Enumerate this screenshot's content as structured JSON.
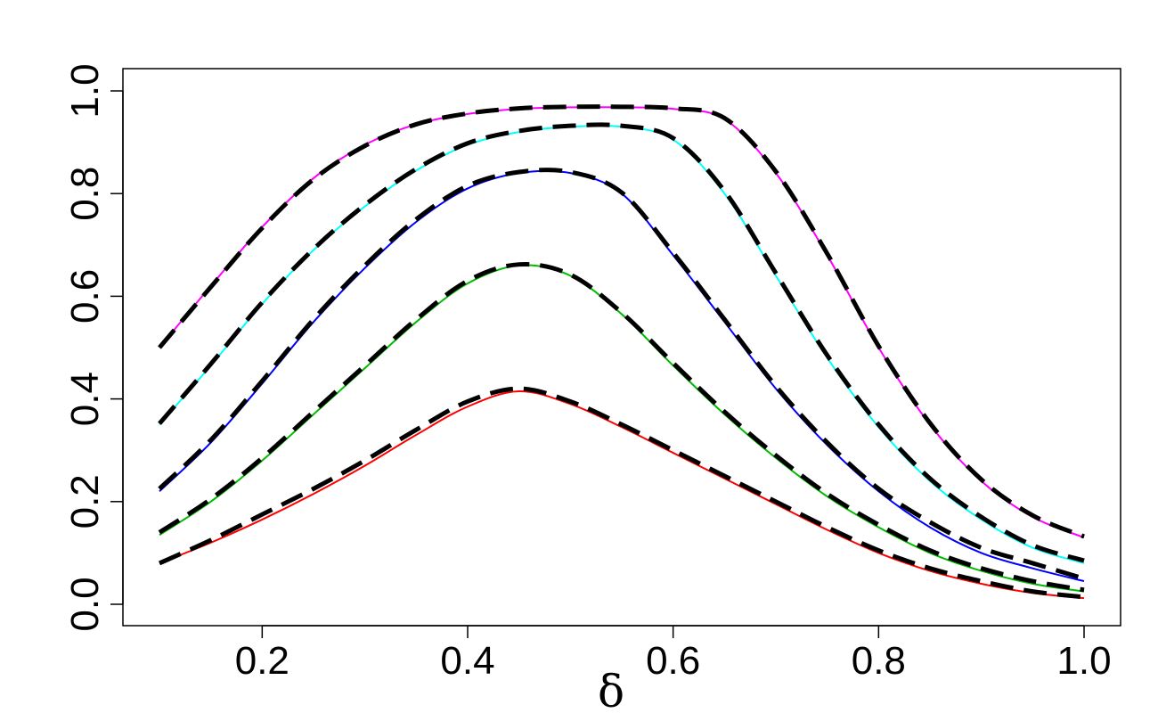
{
  "chart_data": {
    "type": "line",
    "title": "",
    "xlabel": "δ",
    "ylabel": "",
    "xlim": [
      0.1,
      1.0
    ],
    "ylim": [
      0.0,
      1.0
    ],
    "grid": false,
    "x_ticks": [
      "0.2",
      "0.4",
      "0.6",
      "0.8",
      "1.0"
    ],
    "y_ticks": [
      "0.0",
      "0.2",
      "0.4",
      "0.6",
      "0.8",
      "1.0"
    ],
    "series": [
      {
        "color": "#ff0000",
        "style": "solid",
        "x": [
          0.1,
          0.15,
          0.2,
          0.25,
          0.3,
          0.35,
          0.4,
          0.45,
          0.5,
          0.55,
          0.6,
          0.65,
          0.7,
          0.75,
          0.8,
          0.85,
          0.9,
          0.95,
          1.0
        ],
        "y": [
          0.08,
          0.12,
          0.165,
          0.215,
          0.27,
          0.33,
          0.385,
          0.415,
          0.39,
          0.345,
          0.295,
          0.245,
          0.195,
          0.145,
          0.1,
          0.065,
          0.04,
          0.022,
          0.012
        ]
      },
      {
        "color": "#000000",
        "style": "dashed",
        "x": [
          0.1,
          0.15,
          0.2,
          0.25,
          0.3,
          0.35,
          0.4,
          0.45,
          0.5,
          0.55,
          0.6,
          0.65,
          0.7,
          0.75,
          0.8,
          0.85,
          0.9,
          0.95,
          1.0
        ],
        "y": [
          0.08,
          0.125,
          0.175,
          0.225,
          0.28,
          0.34,
          0.395,
          0.42,
          0.395,
          0.35,
          0.3,
          0.25,
          0.2,
          0.15,
          0.105,
          0.07,
          0.045,
          0.025,
          0.014
        ]
      },
      {
        "color": "#00bb00",
        "style": "solid",
        "x": [
          0.1,
          0.15,
          0.2,
          0.25,
          0.3,
          0.35,
          0.4,
          0.45,
          0.5,
          0.55,
          0.6,
          0.65,
          0.7,
          0.75,
          0.8,
          0.85,
          0.9,
          0.95,
          1.0
        ],
        "y": [
          0.135,
          0.2,
          0.28,
          0.37,
          0.46,
          0.55,
          0.625,
          0.66,
          0.64,
          0.565,
          0.465,
          0.37,
          0.285,
          0.21,
          0.15,
          0.1,
          0.065,
          0.04,
          0.025
        ]
      },
      {
        "color": "#000000",
        "style": "dashed",
        "x": [
          0.1,
          0.15,
          0.2,
          0.25,
          0.3,
          0.35,
          0.4,
          0.45,
          0.5,
          0.55,
          0.6,
          0.65,
          0.7,
          0.75,
          0.8,
          0.85,
          0.9,
          0.95,
          1.0
        ],
        "y": [
          0.14,
          0.205,
          0.285,
          0.375,
          0.465,
          0.555,
          0.63,
          0.662,
          0.642,
          0.568,
          0.47,
          0.375,
          0.29,
          0.215,
          0.155,
          0.105,
          0.07,
          0.045,
          0.028
        ]
      },
      {
        "color": "#0000ff",
        "style": "solid",
        "x": [
          0.1,
          0.15,
          0.2,
          0.25,
          0.3,
          0.35,
          0.4,
          0.45,
          0.5,
          0.55,
          0.6,
          0.65,
          0.7,
          0.75,
          0.8,
          0.85,
          0.9,
          0.95,
          1.0
        ],
        "y": [
          0.22,
          0.315,
          0.43,
          0.55,
          0.655,
          0.745,
          0.81,
          0.84,
          0.84,
          0.8,
          0.68,
          0.55,
          0.42,
          0.31,
          0.22,
          0.15,
          0.1,
          0.07,
          0.045
        ]
      },
      {
        "color": "#000000",
        "style": "dashed",
        "x": [
          0.1,
          0.15,
          0.2,
          0.25,
          0.3,
          0.35,
          0.4,
          0.45,
          0.5,
          0.55,
          0.6,
          0.65,
          0.7,
          0.75,
          0.8,
          0.85,
          0.9,
          0.95,
          1.0
        ],
        "y": [
          0.225,
          0.32,
          0.435,
          0.555,
          0.66,
          0.75,
          0.815,
          0.842,
          0.842,
          0.802,
          0.685,
          0.555,
          0.425,
          0.315,
          0.225,
          0.16,
          0.11,
          0.08,
          0.05
        ]
      },
      {
        "color": "#00ffff",
        "style": "solid",
        "x": [
          0.1,
          0.15,
          0.2,
          0.25,
          0.3,
          0.35,
          0.4,
          0.45,
          0.5,
          0.55,
          0.6,
          0.65,
          0.7,
          0.75,
          0.8,
          0.85,
          0.9,
          0.95,
          1.0
        ],
        "y": [
          0.35,
          0.465,
          0.585,
          0.69,
          0.775,
          0.845,
          0.895,
          0.92,
          0.93,
          0.93,
          0.905,
          0.8,
          0.64,
          0.48,
          0.345,
          0.24,
          0.165,
          0.11,
          0.08
        ]
      },
      {
        "color": "#000000",
        "style": "dashed",
        "x": [
          0.1,
          0.15,
          0.2,
          0.25,
          0.3,
          0.35,
          0.4,
          0.45,
          0.5,
          0.55,
          0.6,
          0.65,
          0.7,
          0.75,
          0.8,
          0.85,
          0.9,
          0.95,
          1.0
        ],
        "y": [
          0.352,
          0.468,
          0.588,
          0.692,
          0.778,
          0.848,
          0.898,
          0.922,
          0.932,
          0.932,
          0.908,
          0.805,
          0.645,
          0.485,
          0.35,
          0.245,
          0.17,
          0.115,
          0.085
        ]
      },
      {
        "color": "#ff00ff",
        "style": "solid",
        "x": [
          0.1,
          0.15,
          0.2,
          0.25,
          0.3,
          0.35,
          0.4,
          0.45,
          0.5,
          0.55,
          0.6,
          0.65,
          0.7,
          0.75,
          0.8,
          0.85,
          0.9,
          0.95,
          1.0
        ],
        "y": [
          0.5,
          0.62,
          0.735,
          0.83,
          0.895,
          0.935,
          0.955,
          0.965,
          0.968,
          0.968,
          0.965,
          0.945,
          0.84,
          0.68,
          0.5,
          0.35,
          0.24,
          0.17,
          0.13
        ]
      },
      {
        "color": "#000000",
        "style": "dashed",
        "x": [
          0.1,
          0.15,
          0.2,
          0.25,
          0.3,
          0.35,
          0.4,
          0.45,
          0.5,
          0.55,
          0.6,
          0.65,
          0.7,
          0.75,
          0.8,
          0.85,
          0.9,
          0.95,
          1.0
        ],
        "y": [
          0.5,
          0.618,
          0.733,
          0.828,
          0.893,
          0.935,
          0.956,
          0.966,
          0.969,
          0.969,
          0.966,
          0.947,
          0.843,
          0.683,
          0.503,
          0.353,
          0.243,
          0.173,
          0.132
        ]
      }
    ]
  }
}
